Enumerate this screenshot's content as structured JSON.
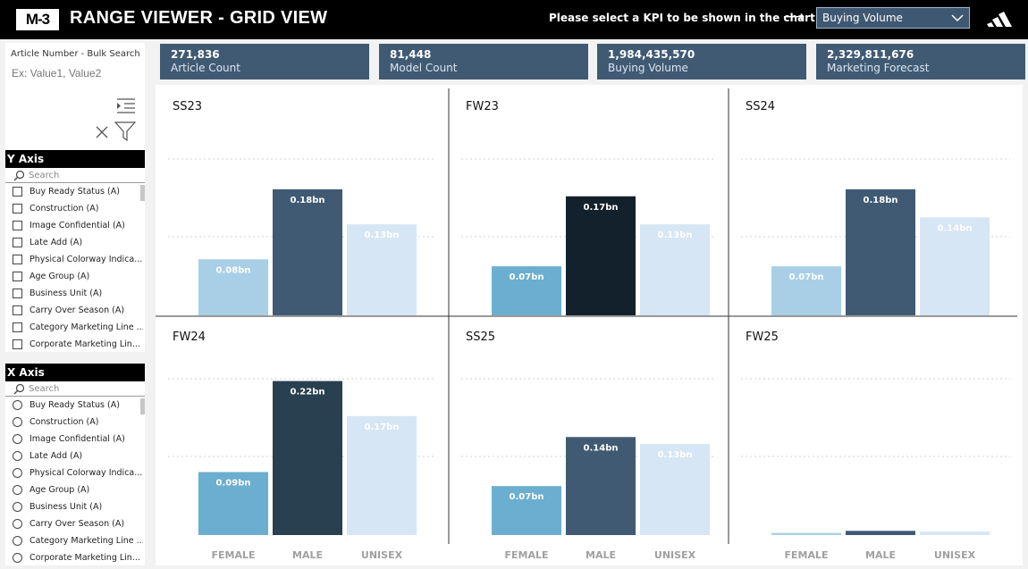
{
  "header": {
    "logo": "M-3",
    "title": "RANGE VIEWER - GRID VIEW",
    "kpi_prompt": "Please select a KPI to be shown in the chart",
    "kpi_selected": "Buying Volume",
    "brand_icon": "adidas-logo-icon"
  },
  "bulk_search": {
    "title": "Article Number - Bulk Search",
    "placeholder": "Ex: Value1, Value2"
  },
  "y_axis": {
    "title": "Y Axis",
    "search_placeholder": "Search",
    "items": [
      "Buy Ready Status (A)",
      "Construction (A)",
      "Image Confidential (A)",
      "Late Add (A)",
      "Physical Colorway Indica...",
      "Age Group (A)",
      "Business Unit (A)",
      "Carry Over Season (A)",
      "Category Marketing Line ...",
      "Corporate Marketing Lin..."
    ]
  },
  "x_axis": {
    "title": "X Axis",
    "search_placeholder": "Search",
    "items": [
      "Buy Ready Status (A)",
      "Construction (A)",
      "Image Confidential (A)",
      "Late Add (A)",
      "Physical Colorway Indica...",
      "Age Group (A)",
      "Business Unit (A)",
      "Carry Over Season (A)",
      "Category Marketing Line ...",
      "Corporate Marketing Lin..."
    ]
  },
  "kpis": [
    {
      "value": "271,836",
      "label": "Article Count"
    },
    {
      "value": "81,448",
      "label": "Model Count"
    },
    {
      "value": "1,984,435,570",
      "label": "Buying Volume"
    },
    {
      "value": "2,329,811,676",
      "label": "Marketing Forecast"
    }
  ],
  "colors": {
    "female": "#6baed0",
    "female_light": "#a8cfe6",
    "male": "#405a74",
    "male_dark": "#12212b",
    "male_darker": "#28404f",
    "unisex": "#d6e6f4",
    "card": "#405a74"
  },
  "chart_data": {
    "type": "bar",
    "categories": [
      "FEMALE",
      "MALE",
      "UNISEX"
    ],
    "unit": "bn",
    "panels": [
      {
        "title": "SS23",
        "values": [
          0.08,
          0.18,
          0.13
        ],
        "labels": [
          "0.08bn",
          "0.18bn",
          "0.13bn"
        ]
      },
      {
        "title": "FW23",
        "values": [
          0.07,
          0.17,
          0.13
        ],
        "labels": [
          "0.07bn",
          "0.17bn",
          "0.13bn"
        ]
      },
      {
        "title": "SS24",
        "values": [
          0.07,
          0.18,
          0.14
        ],
        "labels": [
          "0.07bn",
          "0.18bn",
          "0.14bn"
        ]
      },
      {
        "title": "FW24",
        "values": [
          0.09,
          0.22,
          0.17
        ],
        "labels": [
          "0.09bn",
          "0.22bn",
          "0.17bn"
        ]
      },
      {
        "title": "SS25",
        "values": [
          0.07,
          0.14,
          0.13
        ],
        "labels": [
          "0.07bn",
          "0.14bn",
          "0.13bn"
        ]
      },
      {
        "title": "FW25",
        "values": [
          0.003,
          0.006,
          0.005
        ],
        "labels": [
          "",
          "",
          ""
        ]
      }
    ],
    "ylim": [
      0,
      0.22
    ],
    "grid": true,
    "legend": "none"
  }
}
